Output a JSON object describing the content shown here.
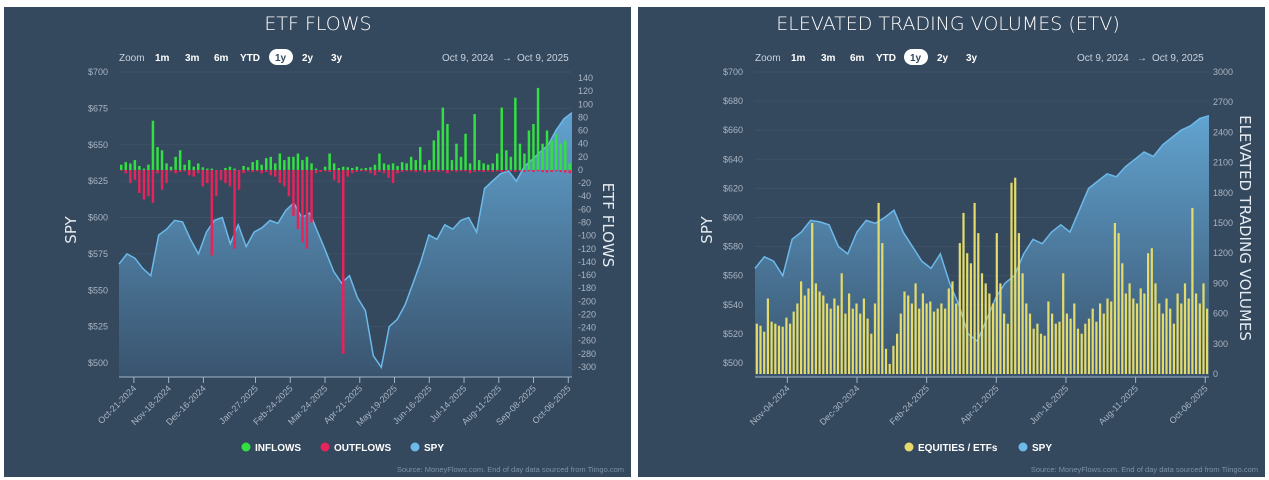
{
  "colors": {
    "panel_bg": "#34485e",
    "inflows": "#33e043",
    "outflows": "#e5245b",
    "spy": "#6cb9ea",
    "equities_etfs": "#e4db6a",
    "active_pill": "#ffffff"
  },
  "zoom": {
    "label": "Zoom",
    "options": [
      "1m",
      "3m",
      "6m",
      "YTD",
      "1y",
      "2y",
      "3y"
    ],
    "selected": "1y"
  },
  "chart_data": [
    {
      "type": "bar",
      "title": "ETF FLOWS",
      "date_from": "Oct 9, 2024",
      "date_arrow": "→",
      "date_to": "Oct 9, 2025",
      "ylabel_left": "SPY",
      "ylabel_right": "ETF FLOWS",
      "y_left_ticks": [
        "$700",
        "$675",
        "$650",
        "$625",
        "$600",
        "$575",
        "$550",
        "$525",
        "$500"
      ],
      "y_left_range": [
        500,
        700
      ],
      "y_right_ticks": [
        "140",
        "120",
        "100",
        "80",
        "60",
        "40",
        "20",
        "0",
        "-20",
        "-40",
        "-60",
        "-80",
        "-100",
        "-120",
        "-140",
        "-160",
        "-180",
        "-200",
        "-220",
        "-240",
        "-260",
        "-280",
        "-300"
      ],
      "y_right_range": [
        -300,
        140
      ],
      "x_ticks": [
        "Oct-21-2024",
        "Nov-18-2024",
        "Dec-16-2024",
        "Jan-27-2025",
        "Feb-24-2025",
        "Mar-24-2025",
        "Apr-21-2025",
        "May-19-2025",
        "Jun-16-2025",
        "Jul-14-2025",
        "Aug-11-2025",
        "Sep-08-2025",
        "Oct-06-2025"
      ],
      "grid": true,
      "legend_position": "bottom",
      "series": [
        {
          "name": "INFLOWS",
          "type": "bar",
          "axis": "right",
          "values": [
            8,
            12,
            10,
            15,
            6,
            2,
            8,
            75,
            35,
            30,
            10,
            5,
            20,
            30,
            8,
            15,
            5,
            10,
            4,
            2,
            2,
            0,
            0,
            3,
            5,
            2,
            0,
            6,
            4,
            12,
            15,
            8,
            18,
            20,
            10,
            25,
            15,
            20,
            20,
            25,
            15,
            20,
            10,
            2,
            0,
            5,
            25,
            10,
            3,
            5,
            4,
            3,
            5,
            2,
            3,
            4,
            8,
            25,
            10,
            8,
            10,
            6,
            12,
            10,
            20,
            15,
            35,
            8,
            15,
            45,
            60,
            95,
            70,
            15,
            40,
            20,
            55,
            10,
            85,
            15,
            10,
            8,
            10,
            25,
            95,
            30,
            20,
            110,
            40,
            25,
            60,
            70,
            125,
            40,
            60,
            45,
            55,
            40,
            45,
            10
          ]
        },
        {
          "name": "OUTFLOWS",
          "type": "bar",
          "axis": "right",
          "values": [
            0,
            -5,
            -20,
            -15,
            -35,
            -45,
            -40,
            -50,
            -5,
            -30,
            -20,
            -2,
            -5,
            -3,
            -2,
            -8,
            -10,
            -5,
            -25,
            -20,
            -130,
            -40,
            -15,
            -20,
            -25,
            -120,
            -30,
            -5,
            -2,
            -3,
            -2,
            -5,
            -3,
            -8,
            -10,
            -20,
            -25,
            -40,
            -70,
            -90,
            -110,
            -120,
            -80,
            -5,
            -3,
            -2,
            -3,
            -15,
            -20,
            -280,
            -10,
            -5,
            -3,
            -2,
            -2,
            -5,
            -8,
            -3,
            -5,
            -12,
            -20,
            -5,
            -3,
            -2,
            -2,
            -3,
            -2,
            -4,
            -3,
            -2,
            -3,
            -2,
            -5,
            -2,
            -3,
            -2,
            -2,
            -5,
            -3,
            -2,
            -3,
            -2,
            -3,
            -2,
            -3,
            -2,
            -2,
            -3,
            -2,
            -3,
            -2,
            -3,
            -2,
            -3,
            -4,
            -3,
            -2,
            -3,
            -4,
            -5
          ]
        },
        {
          "name": "SPY",
          "type": "area",
          "axis": "left",
          "values": [
            568,
            575,
            572,
            565,
            560,
            588,
            592,
            598,
            597,
            585,
            575,
            590,
            598,
            600,
            582,
            595,
            580,
            590,
            593,
            598,
            596,
            605,
            610,
            600,
            603,
            590,
            577,
            563,
            555,
            560,
            545,
            536,
            505,
            497,
            525,
            530,
            540,
            555,
            570,
            588,
            585,
            595,
            592,
            598,
            600,
            590,
            620,
            625,
            630,
            632,
            625,
            635,
            640,
            645,
            650,
            660,
            668,
            672
          ]
        }
      ],
      "source": "Source: MoneyFlows.com. End of day data sourced from Tiingo.com"
    },
    {
      "type": "bar",
      "title": "ELEVATED TRADING VOLUMES (ETV)",
      "date_from": "Oct 9, 2024",
      "date_arrow": "→",
      "date_to": "Oct 9, 2025",
      "ylabel_left": "SPY",
      "ylabel_right": "ELEVATED TRADING VOLUMES",
      "y_left_ticks": [
        "$700",
        "$680",
        "$660",
        "$640",
        "$620",
        "$600",
        "$580",
        "$560",
        "$540",
        "$520",
        "$500"
      ],
      "y_left_range": [
        500,
        700
      ],
      "y_right_ticks": [
        "3000",
        "2700",
        "2400",
        "2100",
        "1800",
        "1500",
        "1200",
        "900",
        "600",
        "300",
        "0"
      ],
      "y_right_range": [
        0,
        3000
      ],
      "x_ticks": [
        "Nov-04-2024",
        "Dec-30-2024",
        "Feb-24-2025",
        "Apr-21-2025",
        "Jun-16-2025",
        "Aug-11-2025",
        "Oct-06-2025"
      ],
      "grid": true,
      "legend_position": "bottom",
      "series": [
        {
          "name": "EQUITIES / ETFs",
          "type": "bar",
          "axis": "right",
          "values": [
            500,
            480,
            420,
            750,
            520,
            500,
            480,
            470,
            560,
            500,
            620,
            700,
            920,
            780,
            850,
            1500,
            900,
            820,
            780,
            700,
            650,
            750,
            680,
            1000,
            600,
            800,
            650,
            700,
            600,
            750,
            550,
            400,
            700,
            1700,
            1300,
            250,
            100,
            280,
            400,
            600,
            820,
            780,
            700,
            900,
            650,
            800,
            700,
            720,
            620,
            650,
            700,
            650,
            850,
            920,
            700,
            1300,
            1600,
            1200,
            1100,
            1700,
            1400,
            1000,
            900,
            800,
            700,
            1400,
            900,
            600,
            500,
            1900,
            1950,
            1400,
            1000,
            700,
            600,
            450,
            500,
            400,
            380,
            720,
            600,
            500,
            520,
            1000,
            600,
            550,
            700,
            450,
            400,
            500,
            550,
            650,
            520,
            700,
            600,
            750,
            720,
            1500,
            1400,
            1100,
            800,
            900,
            750,
            700,
            850,
            800,
            1200,
            1250,
            900,
            700,
            600,
            750,
            650,
            500,
            800,
            700,
            900,
            750,
            1650,
            800,
            700,
            900,
            650
          ]
        },
        {
          "name": "SPY",
          "type": "area",
          "axis": "left",
          "values": [
            565,
            573,
            570,
            560,
            585,
            590,
            598,
            597,
            595,
            580,
            575,
            590,
            598,
            596,
            600,
            605,
            590,
            580,
            570,
            565,
            575,
            555,
            540,
            520,
            515,
            530,
            545,
            555,
            560,
            575,
            585,
            582,
            590,
            595,
            590,
            605,
            620,
            625,
            630,
            628,
            635,
            640,
            645,
            642,
            650,
            655,
            660,
            663,
            668,
            670
          ]
        }
      ],
      "source": "Source: MoneyFlows.com. End of day data sourced from Tiingo.com"
    }
  ]
}
